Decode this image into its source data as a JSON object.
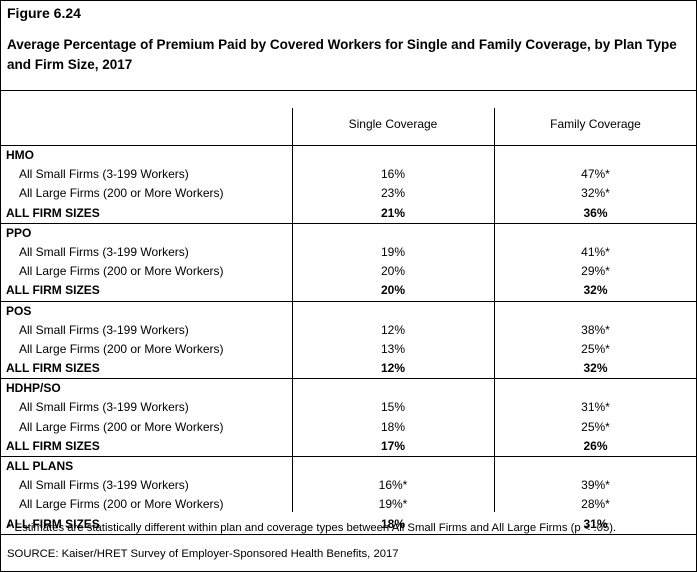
{
  "figure_label": "Figure 6.24",
  "title": "Average Percentage of Premium Paid by Covered Workers for Single and Family Coverage, by Plan Type and Firm Size, 2017",
  "columns": {
    "single": "Single Coverage",
    "family": "Family Coverage"
  },
  "groups": [
    {
      "plan": "HMO",
      "rows": [
        {
          "label": "All Small Firms (3-199 Workers)",
          "single": "16%",
          "family": "47%*"
        },
        {
          "label": "All Large Firms (200 or More Workers)",
          "single": "23%",
          "family": "32%*"
        },
        {
          "label": "ALL FIRM SIZES",
          "single": "21%",
          "family": "36%"
        }
      ]
    },
    {
      "plan": "PPO",
      "rows": [
        {
          "label": "All Small Firms (3-199 Workers)",
          "single": "19%",
          "family": "41%*"
        },
        {
          "label": "All Large Firms (200 or More Workers)",
          "single": "20%",
          "family": "29%*"
        },
        {
          "label": "ALL FIRM SIZES",
          "single": "20%",
          "family": "32%"
        }
      ]
    },
    {
      "plan": "POS",
      "rows": [
        {
          "label": "All Small Firms (3-199 Workers)",
          "single": "12%",
          "family": "38%*"
        },
        {
          "label": "All Large Firms (200 or More Workers)",
          "single": "13%",
          "family": "25%*"
        },
        {
          "label": "ALL FIRM SIZES",
          "single": "12%",
          "family": "32%"
        }
      ]
    },
    {
      "plan": "HDHP/SO",
      "rows": [
        {
          "label": "All Small Firms (3-199 Workers)",
          "single": "15%",
          "family": "31%*"
        },
        {
          "label": "All Large Firms (200 or More Workers)",
          "single": "18%",
          "family": "25%*"
        },
        {
          "label": "ALL FIRM SIZES",
          "single": "17%",
          "family": "26%"
        }
      ]
    },
    {
      "plan": "ALL PLANS",
      "rows": [
        {
          "label": "All Small Firms (3-199 Workers)",
          "single": "16%*",
          "family": "39%*"
        },
        {
          "label": "All Large Firms (200 or More Workers)",
          "single": "19%*",
          "family": "28%*"
        },
        {
          "label": "ALL FIRM SIZES",
          "single": "18%",
          "family": "31%"
        }
      ]
    }
  ],
  "footnote": "* Estimates are statistically different within plan and coverage types between All Small Firms and All Large Firms (p < .05).",
  "source": "SOURCE: Kaiser/HRET Survey of Employer-Sponsored Health Benefits, 2017"
}
